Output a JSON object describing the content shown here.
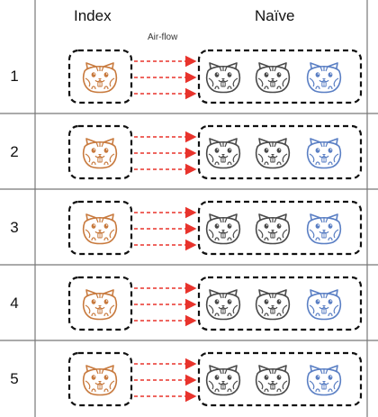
{
  "header": {
    "index_label": "Index",
    "naive_label": "Naïve",
    "airflow_label": "Air-flow"
  },
  "rows": [
    {
      "number": "1"
    },
    {
      "number": "2"
    },
    {
      "number": "3"
    },
    {
      "number": "4"
    },
    {
      "number": "5"
    }
  ],
  "colors": {
    "index_hamster": "#c87a3e",
    "naive_hamster_gray": "#4a4a4a",
    "naive_hamster_blue": "#5a7fc4",
    "airflow_arrow": "#e8332c",
    "group_box": "#111111",
    "row_divider": "#777777"
  },
  "icons": {
    "index_animal": "hamster-icon",
    "naive_animals": [
      "hamster-icon",
      "hamster-icon",
      "hamster-icon"
    ],
    "arrow": "dashed-arrow-icon"
  }
}
